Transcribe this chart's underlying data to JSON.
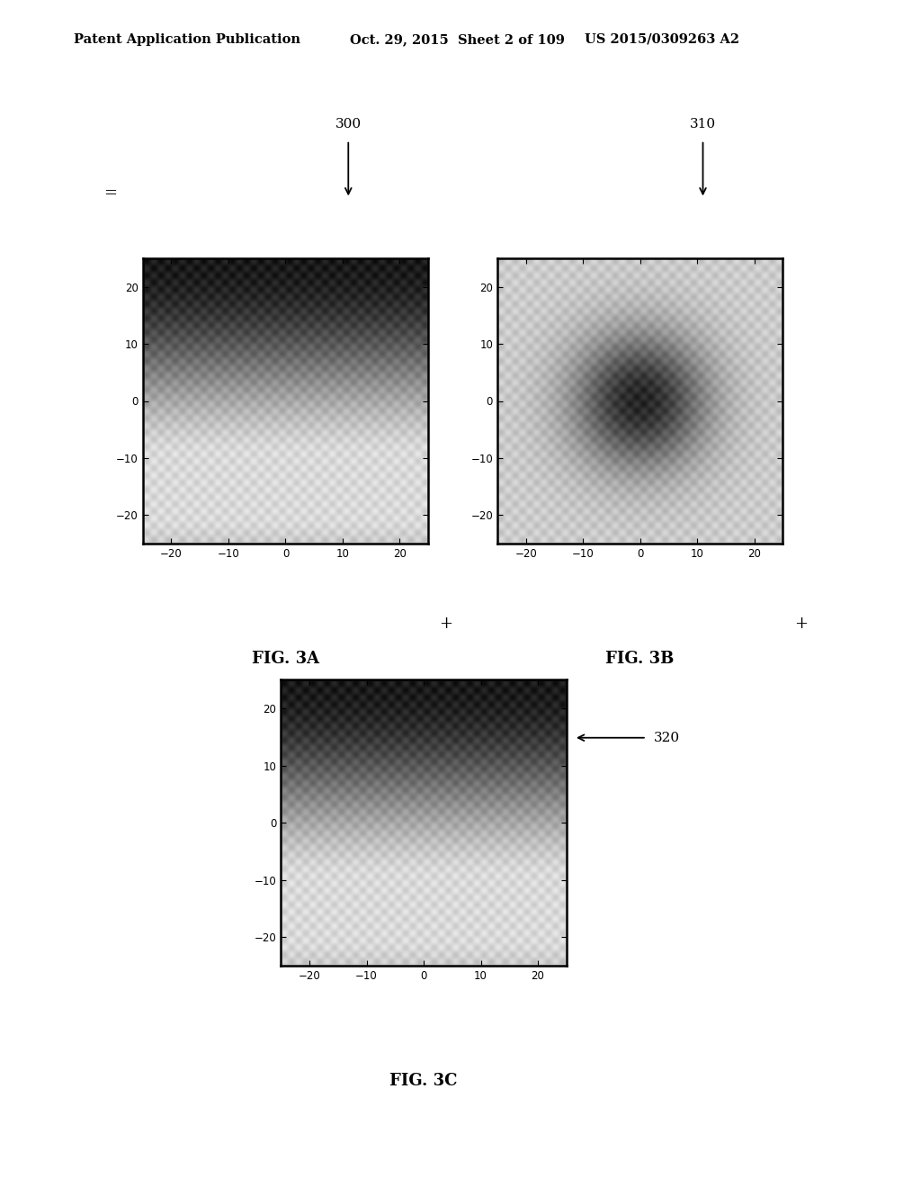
{
  "header_left": "Patent Application Publication",
  "header_mid": "Oct. 29, 2015  Sheet 2 of 109",
  "header_right": "US 2015/0309263 A2",
  "fig3a_label": "FIG. 3A",
  "fig3b_label": "FIG. 3B",
  "fig3c_label": "FIG. 3C",
  "ref_300": "300",
  "ref_310": "310",
  "ref_320": "320",
  "axis_ticks": [
    -20,
    -10,
    0,
    10,
    20
  ],
  "eq_sign": "=",
  "plus_sign_a": "+",
  "plus_sign_b": "+",
  "background_color": "#ffffff"
}
